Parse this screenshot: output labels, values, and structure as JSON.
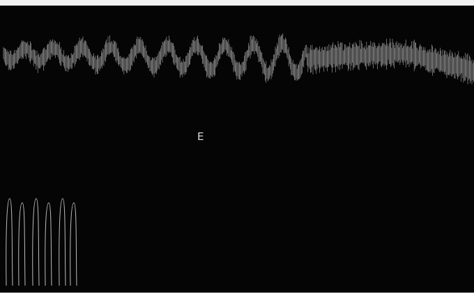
{
  "panel": {
    "label": "E"
  }
}
